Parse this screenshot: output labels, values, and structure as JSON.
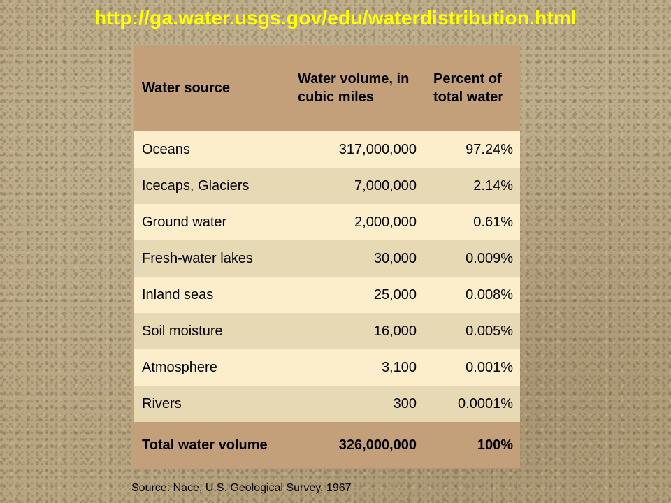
{
  "page": {
    "url_title": "http://ga.water.usgs.gov/edu/waterdistribution.html",
    "source_note": "Source: Nace, U.S. Geological Survey, 1967"
  },
  "table": {
    "headers": {
      "source": "Water source",
      "volume": "Water volume, in\ncubic miles",
      "percent": "Percent of\ntotal water"
    },
    "rows": [
      {
        "source": "Oceans",
        "volume": "317,000,000",
        "percent": "97.24%"
      },
      {
        "source": "Icecaps, Glaciers",
        "volume": "7,000,000",
        "percent": "2.14%"
      },
      {
        "source": "Ground water",
        "volume": "2,000,000",
        "percent": "0.61%"
      },
      {
        "source": "Fresh-water lakes",
        "volume": "30,000",
        "percent": "0.009%"
      },
      {
        "source": "Inland seas",
        "volume": "25,000",
        "percent": "0.008%"
      },
      {
        "source": "Soil moisture",
        "volume": "16,000",
        "percent": "0.005%"
      },
      {
        "source": "Atmosphere",
        "volume": "3,100",
        "percent": "0.001%"
      },
      {
        "source": "Rivers",
        "volume": "300",
        "percent": "0.0001%"
      }
    ],
    "total": {
      "source": "Total water volume",
      "volume": "326,000,000",
      "percent": "100%"
    }
  },
  "colors": {
    "title": "#ffff00",
    "header_bg": "#c4a07a",
    "row_light": "#fdeecb",
    "row_dark": "#e8d9b5",
    "background": "#b8a580"
  }
}
